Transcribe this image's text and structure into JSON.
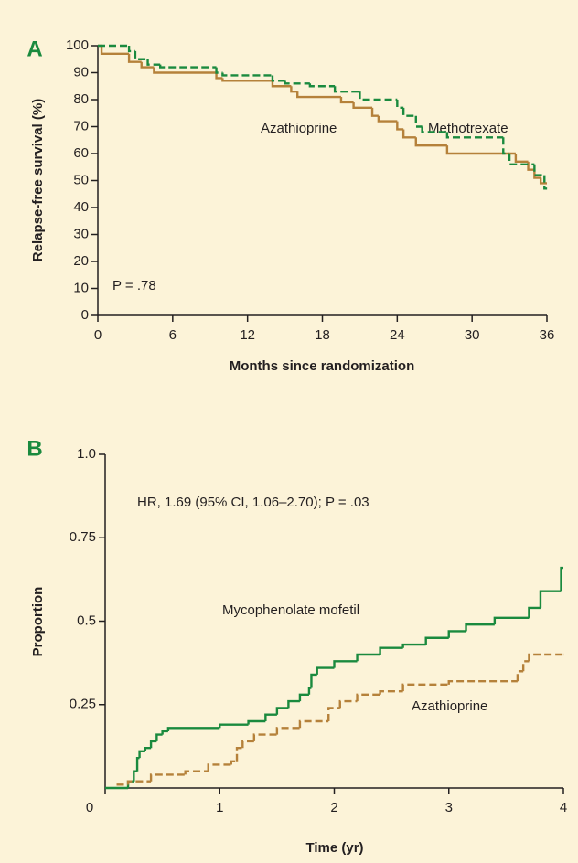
{
  "chart_data": [
    {
      "type": "line",
      "step": true,
      "panel": "A",
      "xlabel": "Months since randomization",
      "ylabel": "Relapse-free survival (%)",
      "xlim": [
        0,
        36
      ],
      "ylim": [
        0,
        100
      ],
      "xticks": [
        0,
        6,
        12,
        18,
        24,
        30,
        36
      ],
      "yticks": [
        0,
        10,
        20,
        30,
        40,
        50,
        60,
        70,
        80,
        90,
        100
      ],
      "annotations": [
        "Azathioprine",
        "Methotrexate",
        "P = .78"
      ],
      "series": [
        {
          "name": "Azathioprine",
          "color": "#b5813a",
          "dashed": false,
          "x": [
            0,
            0.3,
            2.5,
            3.5,
            4.5,
            9.5,
            10,
            14,
            15.5,
            16,
            19.5,
            20.5,
            22,
            22.5,
            24,
            24.5,
            25.5,
            28,
            33.5,
            34.5,
            35,
            35.5,
            36
          ],
          "values": [
            100,
            97,
            94,
            92,
            90,
            88,
            87,
            85,
            83,
            81,
            79,
            77,
            74,
            72,
            69,
            66,
            63,
            60,
            57,
            54,
            51,
            49,
            49
          ]
        },
        {
          "name": "Methotrexate",
          "color": "#1a8a3e",
          "dashed": true,
          "x": [
            0,
            2.5,
            3,
            4,
            5,
            9.5,
            10,
            14,
            15,
            17,
            19,
            21,
            24,
            24.5,
            25.5,
            26,
            28,
            32.5,
            33,
            35,
            35.8,
            36
          ],
          "values": [
            100,
            98,
            95,
            93,
            92,
            90,
            89,
            87,
            86,
            85,
            83,
            80,
            77,
            74,
            70,
            68,
            66,
            60,
            56,
            52,
            47,
            47
          ]
        }
      ]
    },
    {
      "type": "line",
      "step": true,
      "panel": "B",
      "xlabel": "Time (yr)",
      "ylabel": "Proportion",
      "xlim": [
        0,
        4
      ],
      "ylim": [
        0,
        1
      ],
      "xticks": [
        0,
        1,
        2,
        3,
        4
      ],
      "yticks": [
        0.25,
        0.5,
        0.75,
        {
          "value": 1,
          "label": "1.0"
        }
      ],
      "yticklabels_extra": [],
      "annotations": [
        "HR, 1.69 (95% CI, 1.06–2.70); P = .03",
        "Mycophenolate mofetil",
        "Azathioprine"
      ],
      "series": [
        {
          "name": "Mycophenolate mofetil",
          "color": "#1a8a3e",
          "dashed": false,
          "x": [
            0,
            0.2,
            0.25,
            0.28,
            0.3,
            0.35,
            0.4,
            0.45,
            0.5,
            0.55,
            1.0,
            1.25,
            1.4,
            1.5,
            1.6,
            1.7,
            1.78,
            1.8,
            1.85,
            2.0,
            2.2,
            2.4,
            2.6,
            2.8,
            3.0,
            3.15,
            3.4,
            3.7,
            3.8,
            3.98,
            4
          ],
          "values": [
            0,
            0.02,
            0.05,
            0.09,
            0.11,
            0.12,
            0.14,
            0.16,
            0.17,
            0.18,
            0.19,
            0.2,
            0.22,
            0.24,
            0.26,
            0.28,
            0.3,
            0.34,
            0.36,
            0.38,
            0.4,
            0.42,
            0.43,
            0.45,
            0.47,
            0.49,
            0.51,
            0.54,
            0.59,
            0.66,
            0.66
          ]
        },
        {
          "name": "Azathioprine",
          "color": "#b5813a",
          "dashed": true,
          "x": [
            0.1,
            0.2,
            0.4,
            0.7,
            0.9,
            1.1,
            1.15,
            1.2,
            1.3,
            1.5,
            1.7,
            1.95,
            2.05,
            2.2,
            2.4,
            2.6,
            3.0,
            3.6,
            3.65,
            3.7,
            4
          ],
          "values": [
            0.01,
            0.02,
            0.04,
            0.05,
            0.07,
            0.08,
            0.12,
            0.14,
            0.16,
            0.18,
            0.2,
            0.24,
            0.26,
            0.28,
            0.29,
            0.31,
            0.32,
            0.35,
            0.38,
            0.4,
            0.4
          ]
        }
      ]
    }
  ]
}
